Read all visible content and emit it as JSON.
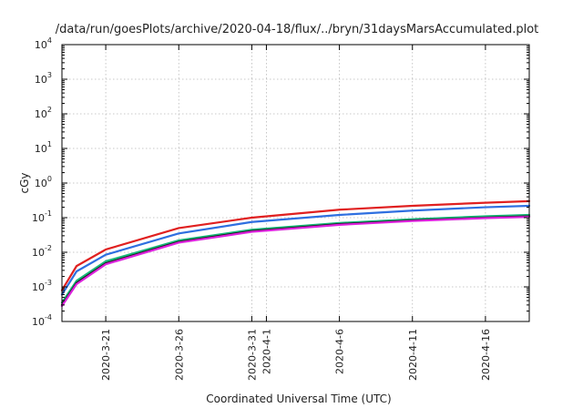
{
  "chart_data": {
    "type": "line",
    "title": "/data/run/goesPlots/archive/2020-04-18/flux/../bryn/31daysMarsAccumulated.plot",
    "xlabel": "Coordinated Universal Time (UTC)",
    "ylabel": "cGy",
    "yscale": "log",
    "ylim": [
      0.0001,
      10000
    ],
    "xlim": [
      "2020-03-18",
      "2020-04-19"
    ],
    "y_ticks": [
      {
        "base": "10",
        "exp": "-4"
      },
      {
        "base": "10",
        "exp": "-3"
      },
      {
        "base": "10",
        "exp": "-2"
      },
      {
        "base": "10",
        "exp": "-1"
      },
      {
        "base": "10",
        "exp": "0"
      },
      {
        "base": "10",
        "exp": "1"
      },
      {
        "base": "10",
        "exp": "2"
      },
      {
        "base": "10",
        "exp": "3"
      },
      {
        "base": "10",
        "exp": "4"
      }
    ],
    "x_ticks": [
      "2020-3-21",
      "2020-3-26",
      "2020-3-31",
      "2020-4-1",
      "2020-4-6",
      "2020-4-11",
      "2020-4-16"
    ],
    "grid": true,
    "legend": "none",
    "series": [
      {
        "color": "#e02020",
        "x": [
          "2020-03-18",
          "2020-03-19",
          "2020-03-21",
          "2020-03-26",
          "2020-03-31",
          "2020-04-06",
          "2020-04-11",
          "2020-04-16",
          "2020-04-19"
        ],
        "y": [
          0.0008,
          0.004,
          0.012,
          0.05,
          0.1,
          0.17,
          0.22,
          0.27,
          0.3
        ]
      },
      {
        "color": "#2e6fe0",
        "x": [
          "2020-03-18",
          "2020-03-19",
          "2020-03-21",
          "2020-03-26",
          "2020-03-31",
          "2020-04-06",
          "2020-04-11",
          "2020-04-16",
          "2020-04-19"
        ],
        "y": [
          0.0006,
          0.0028,
          0.0085,
          0.035,
          0.075,
          0.12,
          0.16,
          0.2,
          0.22
        ]
      },
      {
        "color": "#18b87a",
        "x": [
          "2020-03-18",
          "2020-03-19",
          "2020-03-21",
          "2020-03-26",
          "2020-03-31",
          "2020-04-06",
          "2020-04-11",
          "2020-04-16",
          "2020-04-19"
        ],
        "y": [
          0.00035,
          0.0015,
          0.0055,
          0.022,
          0.045,
          0.07,
          0.09,
          0.11,
          0.12
        ]
      },
      {
        "color": "#1a1a1a",
        "x": [
          "2020-03-18",
          "2020-03-19",
          "2020-03-21",
          "2020-03-26",
          "2020-03-31",
          "2020-04-06",
          "2020-04-11",
          "2020-04-16",
          "2020-04-19"
        ],
        "y": [
          0.0003,
          0.0013,
          0.0048,
          0.02,
          0.041,
          0.065,
          0.083,
          0.1,
          0.11
        ]
      },
      {
        "color": "#dd22dd",
        "x": [
          "2020-03-18",
          "2020-03-19",
          "2020-03-21",
          "2020-03-26",
          "2020-03-31",
          "2020-04-06",
          "2020-04-11",
          "2020-04-16",
          "2020-04-19"
        ],
        "y": [
          0.00028,
          0.0012,
          0.0045,
          0.019,
          0.039,
          0.062,
          0.08,
          0.097,
          0.105
        ]
      }
    ]
  }
}
